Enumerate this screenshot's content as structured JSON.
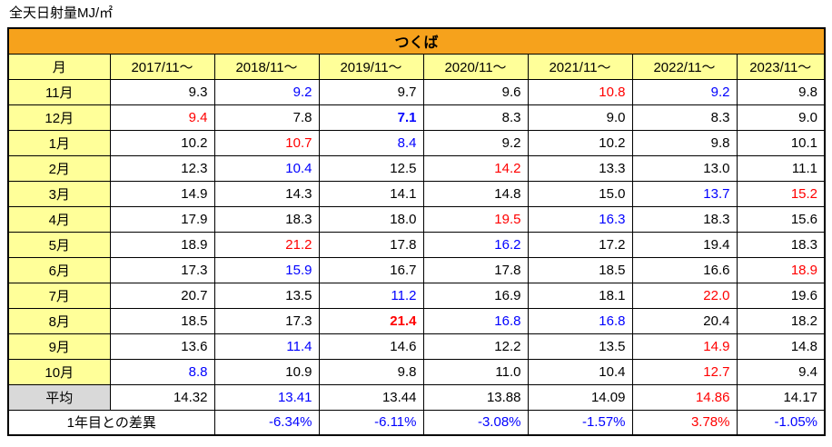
{
  "title": "全天日射量MJ/㎡",
  "table": {
    "location": "つくば",
    "month_header": "月",
    "year_columns": [
      "2017/11〜",
      "2018/11〜",
      "2019/11〜",
      "2020/11〜",
      "2021/11〜",
      "2022/11〜",
      "2023/11〜"
    ],
    "rows": [
      {
        "month": "11月",
        "values": [
          "9.3",
          "9.2",
          "9.7",
          "9.6",
          "10.8",
          "9.2",
          "9.8"
        ],
        "styles": [
          "",
          "b",
          "",
          "",
          "r",
          "b",
          ""
        ]
      },
      {
        "month": "12月",
        "values": [
          "9.4",
          "7.8",
          "7.1",
          "8.3",
          "9.0",
          "8.3",
          "9.0"
        ],
        "styles": [
          "r",
          "",
          "bb",
          "",
          "",
          "",
          ""
        ]
      },
      {
        "month": "1月",
        "values": [
          "10.2",
          "10.7",
          "8.4",
          "9.2",
          "10.2",
          "9.8",
          "10.1"
        ],
        "styles": [
          "",
          "r",
          "b",
          "",
          "",
          "",
          ""
        ]
      },
      {
        "month": "2月",
        "values": [
          "12.3",
          "10.4",
          "12.5",
          "14.2",
          "13.3",
          "13.0",
          "11.1"
        ],
        "styles": [
          "",
          "b",
          "",
          "r",
          "",
          "",
          ""
        ]
      },
      {
        "month": "3月",
        "values": [
          "14.9",
          "14.3",
          "14.1",
          "14.8",
          "15.0",
          "13.7",
          "15.2"
        ],
        "styles": [
          "",
          "",
          "",
          "",
          "",
          "b",
          "r"
        ]
      },
      {
        "month": "4月",
        "values": [
          "17.9",
          "18.3",
          "18.0",
          "19.5",
          "16.3",
          "18.3",
          "15.6"
        ],
        "styles": [
          "",
          "",
          "",
          "r",
          "b",
          "",
          ""
        ]
      },
      {
        "month": "5月",
        "values": [
          "18.9",
          "21.2",
          "17.8",
          "16.2",
          "17.2",
          "19.4",
          "18.3"
        ],
        "styles": [
          "",
          "r",
          "",
          "b",
          "",
          "",
          ""
        ]
      },
      {
        "month": "6月",
        "values": [
          "17.3",
          "15.9",
          "16.7",
          "17.8",
          "18.5",
          "16.6",
          "18.9"
        ],
        "styles": [
          "",
          "b",
          "",
          "",
          "",
          "",
          "r"
        ]
      },
      {
        "month": "7月",
        "values": [
          "20.7",
          "13.5",
          "11.2",
          "16.9",
          "18.1",
          "22.0",
          "19.6"
        ],
        "styles": [
          "",
          "",
          "b",
          "",
          "",
          "r",
          ""
        ]
      },
      {
        "month": "8月",
        "values": [
          "18.5",
          "17.3",
          "21.4",
          "16.8",
          "16.8",
          "20.4",
          "18.2"
        ],
        "styles": [
          "",
          "",
          "rb",
          "b",
          "b",
          "",
          ""
        ]
      },
      {
        "month": "9月",
        "values": [
          "13.6",
          "11.4",
          "14.6",
          "12.2",
          "13.5",
          "14.9",
          "14.8"
        ],
        "styles": [
          "",
          "b",
          "",
          "",
          "",
          "r",
          ""
        ]
      },
      {
        "month": "10月",
        "values": [
          "8.8",
          "10.9",
          "9.8",
          "11.0",
          "10.4",
          "12.7",
          "9.4"
        ],
        "styles": [
          "b",
          "",
          "",
          "",
          "",
          "r",
          ""
        ]
      }
    ],
    "average": {
      "label": "平均",
      "values": [
        "14.32",
        "13.41",
        "13.44",
        "13.88",
        "14.09",
        "14.86",
        "14.17"
      ],
      "styles": [
        "",
        "b",
        "",
        "",
        "",
        "r",
        ""
      ]
    },
    "first_year_diff": {
      "label": "1年目との差異",
      "values": [
        "-6.34%",
        "-6.11%",
        "-3.08%",
        "-1.57%",
        "3.78%",
        "-1.05%"
      ],
      "styles": [
        "b",
        "b",
        "b",
        "b",
        "r",
        "b"
      ]
    }
  },
  "colors": {
    "header_orange": "#F6A21C",
    "label_yellow": "#FFFF99",
    "average_gray": "#D9D9D9",
    "max_red": "#FF0000",
    "min_blue": "#0000FF"
  }
}
